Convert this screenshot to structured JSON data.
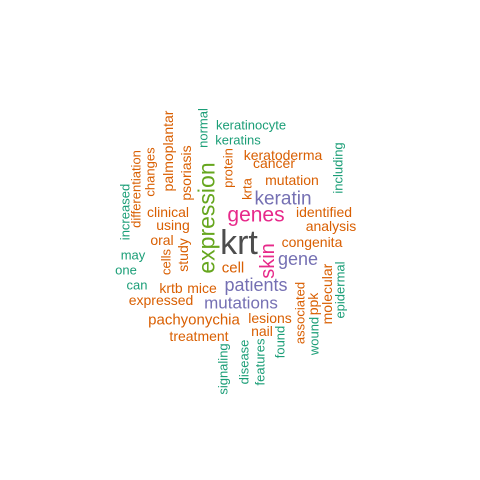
{
  "colors": {
    "teal": "#1b9e77",
    "orange": "#d95f02",
    "purple": "#7570b3",
    "magenta": "#e7298a",
    "green": "#66a61e",
    "dark": "#4d4d4d"
  },
  "words": {
    "krt": "krt",
    "expression": "expression",
    "genes": "genes",
    "keratin": "keratin",
    "skin": "skin",
    "gene": "gene",
    "patients": "patients",
    "mutations": "mutations",
    "keratinocyte": "keratinocyte",
    "keratins": "keratins",
    "normal": "normal",
    "protein": "protein",
    "keratoderma": "keratoderma",
    "cancer": "cancer",
    "mutation": "mutation",
    "krta": "krta",
    "identified": "identified",
    "analysis": "analysis",
    "congenita": "congenita",
    "including": "including",
    "palmoplantar": "palmoplantar",
    "psoriasis": "psoriasis",
    "changes": "changes",
    "differentiation": "differentiation",
    "increased": "increased",
    "clinical": "clinical",
    "using": "using",
    "oral": "oral",
    "cells": "cells",
    "study": "study",
    "cell": "cell",
    "may": "may",
    "one": "one",
    "can": "can",
    "krtb": "krtb",
    "mice": "mice",
    "expressed": "expressed",
    "pachyonychia": "pachyonychia",
    "lesions": "lesions",
    "nail": "nail",
    "treatment": "treatment",
    "associated": "associated",
    "ppk": "ppk",
    "molecular": "molecular",
    "epidermal": "epidermal",
    "wound": "wound",
    "found": "found",
    "signaling": "signaling",
    "disease": "disease",
    "features": "features"
  }
}
